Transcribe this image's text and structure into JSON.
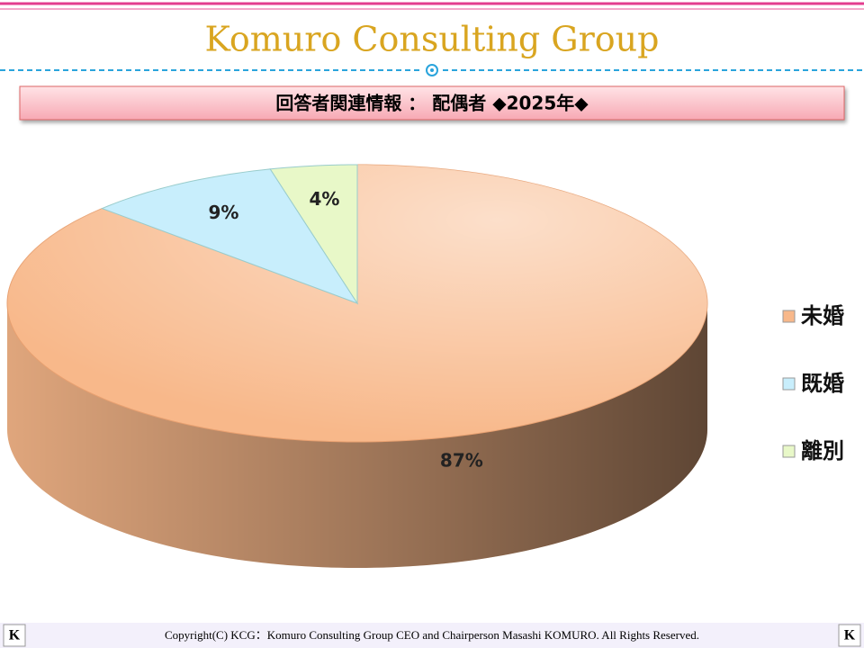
{
  "header": {
    "title": "Komuro Consulting Group",
    "banner": "回答者関連情報 ： 配偶者 ◆2025年◆"
  },
  "chart_data": {
    "type": "pie",
    "categories": [
      "未婚",
      "既婚",
      "離別"
    ],
    "values": [
      87,
      9,
      4
    ],
    "value_labels": [
      "87%",
      "9%",
      "4%"
    ],
    "colors": [
      "#f8b88a",
      "#c8eefc",
      "#e8f8c8"
    ],
    "legend": "right"
  },
  "footer": {
    "copyright": "Copyright(C) KCG：Komuro Consulting Group CEO and Chairperson Masashi KOMURO. All Rights Reserved.",
    "logo": "K"
  }
}
